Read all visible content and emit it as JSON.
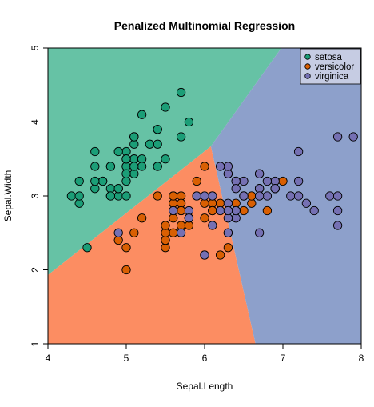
{
  "chart_data": {
    "type": "scatter",
    "title": "Penalized Multinomial Regression",
    "xlabel": "Sepal.Length",
    "ylabel": "Sepal.Width",
    "xlim": [
      4,
      8
    ],
    "ylim": [
      1,
      5
    ],
    "xticks": [
      "4",
      "5",
      "6",
      "7",
      "8"
    ],
    "yticks": [
      "1",
      "2",
      "3",
      "4",
      "5"
    ],
    "grid": false,
    "legend_position": "top-right",
    "decision_regions": [
      {
        "class": "setosa",
        "color": "#66C2A5",
        "vertices": [
          [
            4.0,
            5.0
          ],
          [
            6.98,
            5.0
          ],
          [
            6.08,
            3.67
          ],
          [
            4.0,
            1.93
          ]
        ]
      },
      {
        "class": "versicolor",
        "color": "#FC8D62",
        "vertices": [
          [
            4.0,
            1.93
          ],
          [
            6.08,
            3.67
          ],
          [
            6.65,
            1.0
          ],
          [
            4.0,
            1.0
          ]
        ]
      },
      {
        "class": "virginica",
        "color": "#8DA0CB",
        "vertices": [
          [
            6.98,
            5.0
          ],
          [
            8.0,
            5.0
          ],
          [
            8.0,
            1.0
          ],
          [
            6.65,
            1.0
          ],
          [
            6.08,
            3.67
          ]
        ]
      }
    ],
    "series": [
      {
        "name": "setosa",
        "color": "#1B9E77",
        "x": [
          5.1,
          4.9,
          4.7,
          4.6,
          5.0,
          5.4,
          4.6,
          5.0,
          4.4,
          4.9,
          5.4,
          4.8,
          4.8,
          4.3,
          5.8,
          5.7,
          5.4,
          5.1,
          5.7,
          5.1,
          5.4,
          5.1,
          4.6,
          5.1,
          4.8,
          5.0,
          5.0,
          5.2,
          5.2,
          4.7,
          4.8,
          5.4,
          5.2,
          5.5,
          4.9,
          5.0,
          5.5,
          4.9,
          4.4,
          5.1,
          5.0,
          4.5,
          4.4,
          5.0,
          5.1,
          4.8,
          5.1,
          4.6,
          5.3,
          5.0
        ],
        "y": [
          3.5,
          3.0,
          3.2,
          3.1,
          3.6,
          3.9,
          3.4,
          3.4,
          2.9,
          3.1,
          3.7,
          3.4,
          3.0,
          3.0,
          4.0,
          4.4,
          3.9,
          3.5,
          3.8,
          3.8,
          3.4,
          3.7,
          3.6,
          3.3,
          3.4,
          3.0,
          3.4,
          3.5,
          3.4,
          3.2,
          3.1,
          3.4,
          4.1,
          4.2,
          3.1,
          3.2,
          3.5,
          3.6,
          3.0,
          3.4,
          3.5,
          2.3,
          3.2,
          3.5,
          3.8,
          3.0,
          3.8,
          3.2,
          3.7,
          3.3
        ]
      },
      {
        "name": "versicolor",
        "color": "#D95F02",
        "x": [
          7.0,
          6.4,
          6.9,
          5.5,
          6.5,
          5.7,
          6.3,
          4.9,
          6.6,
          5.2,
          5.0,
          5.9,
          6.0,
          6.1,
          5.6,
          6.7,
          5.6,
          5.8,
          6.2,
          5.6,
          5.9,
          6.1,
          6.3,
          6.1,
          6.4,
          6.6,
          6.8,
          6.7,
          6.0,
          5.7,
          5.5,
          5.5,
          5.8,
          6.0,
          5.4,
          6.0,
          6.7,
          6.3,
          5.6,
          5.5,
          5.5,
          6.1,
          5.8,
          5.0,
          5.6,
          5.7,
          5.7,
          6.2,
          5.1,
          5.7
        ],
        "y": [
          3.2,
          3.2,
          3.1,
          2.3,
          2.8,
          2.8,
          3.3,
          2.4,
          2.9,
          2.7,
          2.0,
          3.0,
          2.2,
          2.9,
          2.9,
          3.1,
          3.0,
          2.7,
          2.2,
          2.5,
          3.2,
          2.8,
          2.5,
          2.8,
          2.9,
          3.0,
          2.8,
          3.0,
          2.9,
          2.6,
          2.4,
          2.4,
          2.7,
          2.7,
          3.0,
          3.4,
          3.1,
          2.3,
          3.0,
          2.5,
          2.6,
          3.0,
          2.6,
          2.3,
          2.7,
          3.0,
          2.9,
          2.9,
          2.5,
          2.8
        ]
      },
      {
        "name": "virginica",
        "color": "#7570B3",
        "x": [
          6.3,
          5.8,
          7.1,
          6.3,
          6.5,
          7.6,
          4.9,
          7.3,
          6.7,
          7.2,
          6.5,
          6.4,
          6.8,
          5.7,
          5.8,
          6.4,
          6.5,
          7.7,
          7.7,
          6.0,
          6.9,
          5.6,
          7.7,
          6.3,
          6.7,
          7.2,
          6.2,
          6.1,
          6.4,
          7.2,
          7.4,
          7.9,
          6.4,
          6.3,
          6.1,
          7.7,
          6.3,
          6.4,
          6.0,
          6.9,
          6.7,
          6.9,
          5.8,
          6.8,
          6.7,
          6.7,
          6.3,
          6.5,
          6.2,
          5.9
        ],
        "y": [
          3.3,
          2.7,
          3.0,
          2.9,
          3.0,
          3.0,
          2.5,
          2.9,
          2.5,
          3.6,
          3.2,
          2.7,
          3.0,
          2.5,
          2.8,
          3.2,
          3.0,
          3.8,
          2.6,
          2.2,
          3.2,
          2.8,
          2.8,
          2.7,
          3.3,
          3.2,
          2.8,
          3.0,
          2.8,
          3.0,
          2.8,
          3.8,
          2.8,
          2.8,
          2.6,
          3.0,
          3.4,
          3.1,
          3.0,
          3.1,
          3.1,
          3.1,
          2.7,
          3.2,
          3.3,
          3.0,
          2.5,
          3.0,
          3.4,
          3.0
        ]
      }
    ]
  }
}
